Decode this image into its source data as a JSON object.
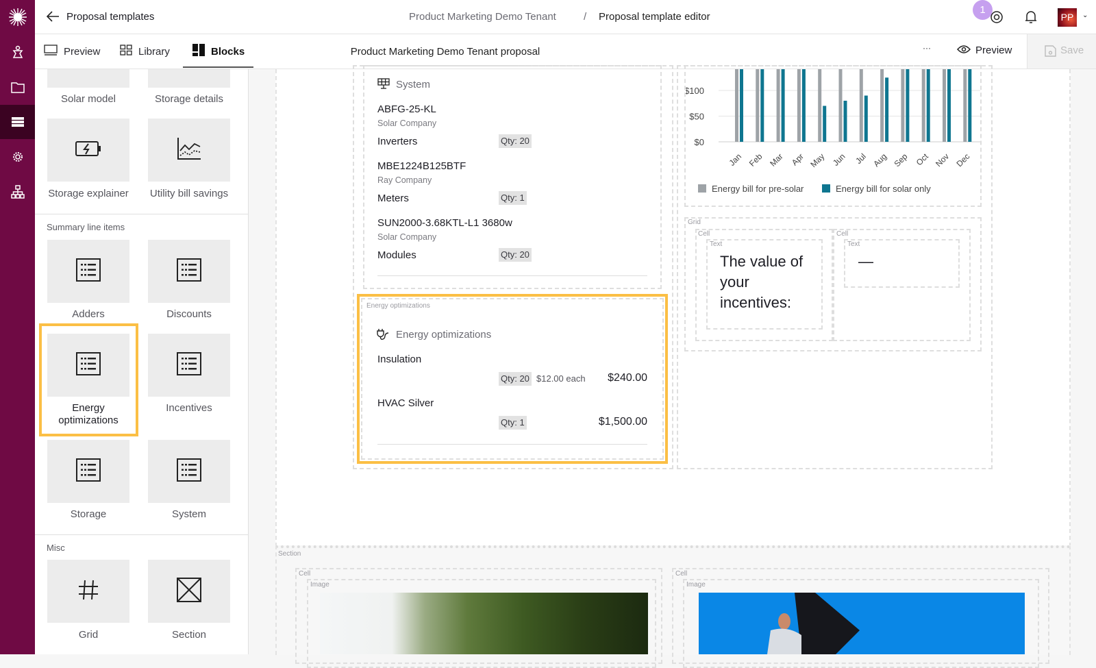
{
  "header": {
    "back_label": "Proposal templates",
    "breadcrumb": [
      "Product Marketing Demo Tenant",
      "/",
      "Proposal template editor"
    ],
    "notification_count": "1",
    "avatar_initials": "PP"
  },
  "toolbar": {
    "tabs": [
      {
        "label": "Preview",
        "icon": "monitor-icon"
      },
      {
        "label": "Library",
        "icon": "grid-icon"
      },
      {
        "label": "Blocks",
        "icon": "blocks-icon",
        "active": true
      }
    ],
    "document_title": "Product Marketing Demo Tenant proposal",
    "more_label": "···",
    "preview_label": "Preview",
    "save_label": "Save"
  },
  "rail": {
    "items": [
      "logo",
      "person-icon",
      "folder-icon",
      "list-icon",
      "gear-icon",
      "org-chart-icon"
    ],
    "active": "list-icon",
    "color": "#6f0a44"
  },
  "blocks_panel": {
    "top_labels": [
      "Solar model",
      "Storage details"
    ],
    "row1": [
      {
        "label": "Storage explainer",
        "icon": "battery-icon"
      },
      {
        "label": "Utility bill savings",
        "icon": "chart-line-icon"
      }
    ],
    "summary_title": "Summary line items",
    "summary": [
      {
        "label": "Adders"
      },
      {
        "label": "Discounts"
      },
      {
        "label": "Energy optimizations",
        "selected": true
      },
      {
        "label": "Incentives"
      },
      {
        "label": "Storage"
      },
      {
        "label": "System"
      }
    ],
    "misc_title": "Misc",
    "misc": [
      {
        "label": "Grid",
        "icon": "hash-icon"
      },
      {
        "label": "Section",
        "icon": "section-icon"
      }
    ]
  },
  "system_block": {
    "title": "System",
    "items": [
      {
        "model": "ABFG-25-KL",
        "company": "Solar Company",
        "type": "Inverters",
        "qty": "Qty: 20"
      },
      {
        "model": "MBE1224B125BTF",
        "company": "Ray Company",
        "type": "Meters",
        "qty": "Qty: 1"
      },
      {
        "model": "SUN2000-3.68KTL-L1 3680w",
        "company": "Solar Company",
        "type": "Modules",
        "qty": "Qty: 20"
      }
    ]
  },
  "energy_block": {
    "frame_label": "Energy optimizations",
    "title": "Energy optimizations",
    "highlight_color": "#fbbf45",
    "items": [
      {
        "name": "Insulation",
        "qty": "Qty: 20",
        "each": "$12.00 each",
        "total": "$240.00"
      },
      {
        "name": "HVAC Silver",
        "qty": "Qty: 1",
        "each": "",
        "total": "$1,500.00"
      }
    ]
  },
  "grid_block": {
    "grid_label": "Grid",
    "cell_label": "Cell",
    "text_label": "Text",
    "left_text": "The value of your incentives:",
    "right_text": "—"
  },
  "section_block": {
    "section_label": "Section",
    "cell_label": "Cell",
    "image_label": "Image"
  },
  "chart_data": {
    "type": "bar",
    "categories": [
      "Jan",
      "Feb",
      "Mar",
      "Apr",
      "May",
      "Jun",
      "Jul",
      "Aug",
      "Sep",
      "Oct",
      "Nov",
      "Dec"
    ],
    "yticks": [
      "$0",
      "$50",
      "$100"
    ],
    "ytick_values": [
      0,
      50,
      100
    ],
    "series": [
      {
        "name": "Energy bill for pre-solar",
        "color": "#9ea3a7",
        "values": [
          160,
          160,
          160,
          160,
          160,
          160,
          160,
          160,
          160,
          160,
          160,
          160
        ]
      },
      {
        "name": "Energy bill for solar only",
        "color": "#0f7690",
        "values": [
          150,
          150,
          150,
          150,
          70,
          80,
          90,
          125,
          150,
          150,
          150,
          150
        ]
      }
    ],
    "legend": "bottom",
    "grid": true,
    "note_values_above_visible_range_are_clipped": true
  }
}
